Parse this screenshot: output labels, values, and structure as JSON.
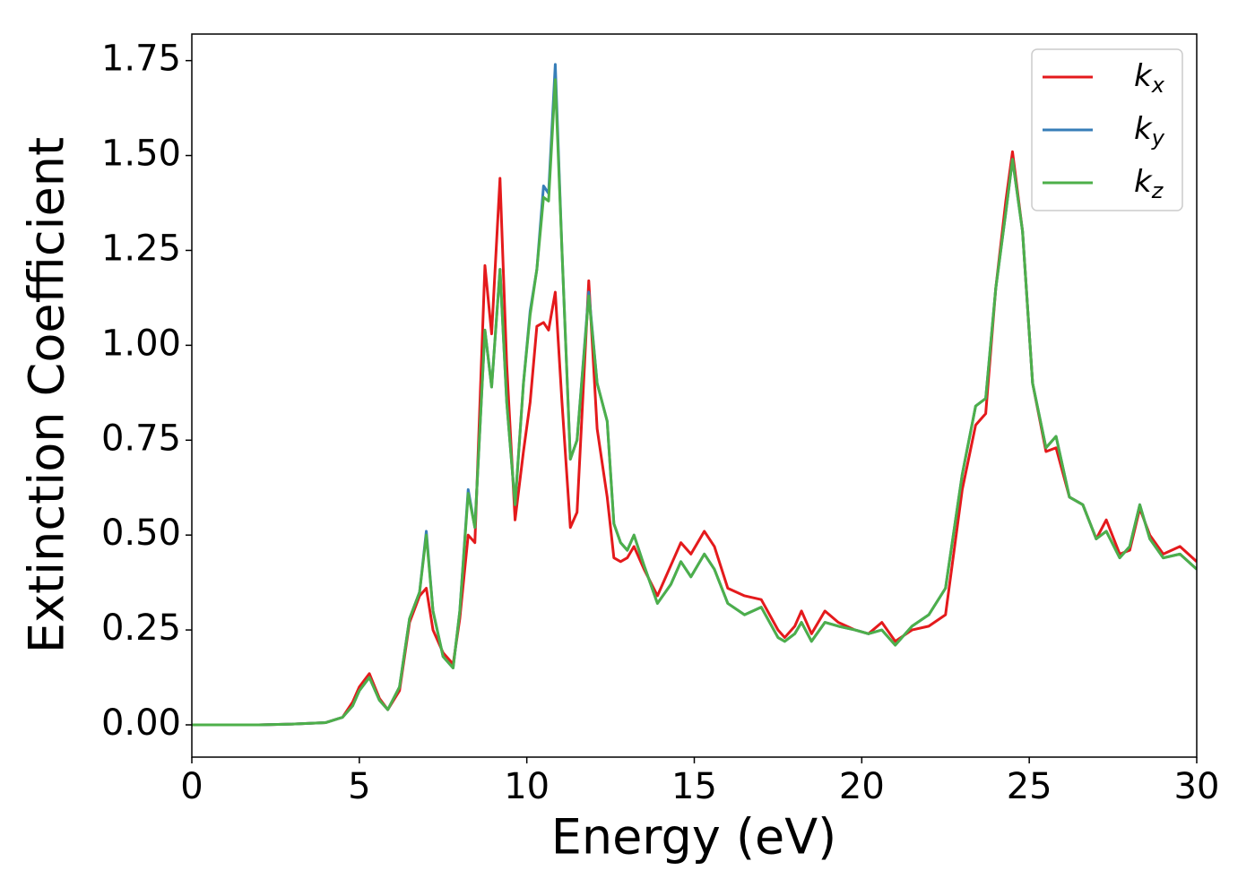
{
  "chart_data": {
    "type": "line",
    "x_label": "Energy (eV)",
    "y_label": "Extinction Coefficient",
    "x": [
      0,
      1,
      2,
      3,
      4,
      4.5,
      4.8,
      5.0,
      5.3,
      5.6,
      5.85,
      6.2,
      6.5,
      6.8,
      7.0,
      7.2,
      7.5,
      7.8,
      8.0,
      8.25,
      8.45,
      8.75,
      8.95,
      9.2,
      9.4,
      9.65,
      9.9,
      10.1,
      10.3,
      10.5,
      10.65,
      10.85,
      11.05,
      11.3,
      11.5,
      11.85,
      12.1,
      12.4,
      12.6,
      12.8,
      13.0,
      13.2,
      13.5,
      13.9,
      14.3,
      14.6,
      14.9,
      15.3,
      15.6,
      16.0,
      16.5,
      17.0,
      17.5,
      17.7,
      18.0,
      18.2,
      18.5,
      18.9,
      19.3,
      19.8,
      20.2,
      20.6,
      21.0,
      21.5,
      22.0,
      22.5,
      23.0,
      23.4,
      23.7,
      24.0,
      24.3,
      24.5,
      24.8,
      25.1,
      25.5,
      25.8,
      26.2,
      26.6,
      27.0,
      27.3,
      27.7,
      28.0,
      28.3,
      28.6,
      29.0,
      29.5,
      30
    ],
    "series": [
      {
        "name": "kx",
        "color": "#e41a1c",
        "values": [
          0,
          0,
          0,
          0.002,
          0.006,
          0.02,
          0.06,
          0.1,
          0.135,
          0.07,
          0.04,
          0.09,
          0.27,
          0.34,
          0.36,
          0.25,
          0.19,
          0.16,
          0.28,
          0.5,
          0.48,
          1.21,
          1.03,
          1.44,
          0.95,
          0.54,
          0.72,
          0.85,
          1.05,
          1.06,
          1.04,
          1.14,
          0.85,
          0.52,
          0.56,
          1.17,
          0.78,
          0.6,
          0.44,
          0.43,
          0.44,
          0.47,
          0.41,
          0.34,
          0.42,
          0.48,
          0.45,
          0.51,
          0.47,
          0.36,
          0.34,
          0.33,
          0.25,
          0.23,
          0.26,
          0.3,
          0.24,
          0.3,
          0.27,
          0.25,
          0.24,
          0.27,
          0.22,
          0.25,
          0.26,
          0.29,
          0.62,
          0.79,
          0.82,
          1.15,
          1.38,
          1.51,
          1.3,
          0.9,
          0.72,
          0.73,
          0.6,
          0.58,
          0.49,
          0.54,
          0.45,
          0.46,
          0.57,
          0.5,
          0.45,
          0.47,
          0.43
        ]
      },
      {
        "name": "ky",
        "color": "#377eb8",
        "values": [
          0,
          0,
          0,
          0.002,
          0.006,
          0.02,
          0.05,
          0.09,
          0.125,
          0.065,
          0.04,
          0.1,
          0.28,
          0.35,
          0.51,
          0.3,
          0.18,
          0.15,
          0.3,
          0.62,
          0.52,
          1.04,
          0.89,
          1.2,
          0.85,
          0.58,
          0.9,
          1.09,
          1.2,
          1.42,
          1.4,
          1.74,
          1.25,
          0.7,
          0.75,
          1.14,
          0.9,
          0.8,
          0.53,
          0.48,
          0.46,
          0.5,
          0.42,
          0.32,
          0.37,
          0.43,
          0.39,
          0.45,
          0.41,
          0.32,
          0.29,
          0.31,
          0.23,
          0.22,
          0.24,
          0.27,
          0.22,
          0.27,
          0.26,
          0.25,
          0.24,
          0.25,
          0.21,
          0.26,
          0.29,
          0.36,
          0.66,
          0.84,
          0.86,
          1.15,
          1.35,
          1.49,
          1.3,
          0.9,
          0.73,
          0.76,
          0.6,
          0.58,
          0.49,
          0.51,
          0.44,
          0.47,
          0.58,
          0.49,
          0.44,
          0.45,
          0.41
        ]
      },
      {
        "name": "kz",
        "color": "#4daf4a",
        "values": [
          0,
          0,
          0,
          0.002,
          0.006,
          0.02,
          0.05,
          0.09,
          0.125,
          0.065,
          0.04,
          0.1,
          0.28,
          0.35,
          0.5,
          0.3,
          0.18,
          0.15,
          0.3,
          0.61,
          0.52,
          1.04,
          0.89,
          1.2,
          0.85,
          0.58,
          0.9,
          1.08,
          1.2,
          1.39,
          1.38,
          1.7,
          1.25,
          0.7,
          0.75,
          1.13,
          0.9,
          0.8,
          0.53,
          0.48,
          0.46,
          0.5,
          0.42,
          0.32,
          0.37,
          0.43,
          0.39,
          0.45,
          0.41,
          0.32,
          0.29,
          0.31,
          0.23,
          0.22,
          0.24,
          0.27,
          0.22,
          0.27,
          0.26,
          0.25,
          0.24,
          0.25,
          0.21,
          0.26,
          0.29,
          0.36,
          0.66,
          0.84,
          0.86,
          1.15,
          1.35,
          1.49,
          1.3,
          0.9,
          0.73,
          0.76,
          0.6,
          0.58,
          0.49,
          0.51,
          0.44,
          0.47,
          0.58,
          0.49,
          0.44,
          0.45,
          0.41
        ]
      }
    ],
    "xlim": [
      0,
      30
    ],
    "xticks": [
      0,
      5,
      10,
      15,
      20,
      25,
      30
    ],
    "ylim": [
      -0.085,
      1.82
    ],
    "yticks": [
      {
        "value": 0,
        "label": "0.00"
      },
      0.25,
      {
        "value": 0.5,
        "label": "0.50"
      },
      0.75,
      {
        "value": 1,
        "label": "1.00"
      },
      1.25,
      {
        "value": 1.5,
        "label": "1.50"
      },
      1.75
    ],
    "legend": "upper right"
  }
}
